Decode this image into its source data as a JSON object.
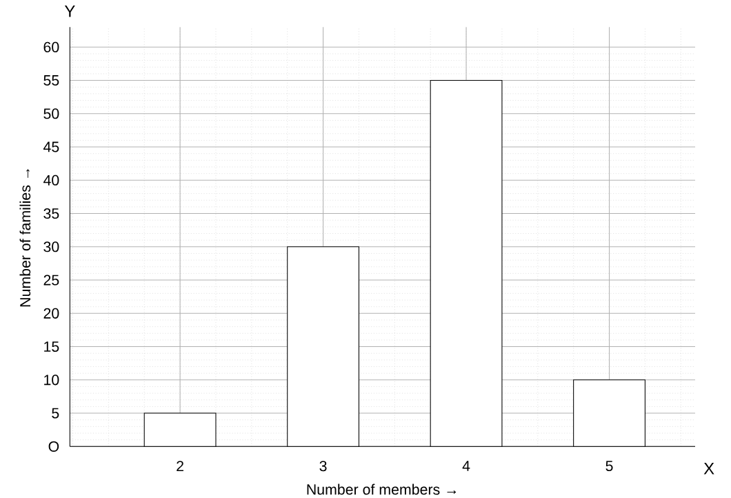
{
  "chart_data": {
    "type": "bar",
    "xlabel": "Number of members →",
    "ylabel": "Number of families →",
    "categories": [
      "2",
      "3",
      "4",
      "5"
    ],
    "values": [
      5,
      30,
      55,
      10
    ],
    "color": "#ffffff",
    "ylim": [
      0,
      63
    ],
    "yticks": [
      {
        "value": 0,
        "label": "O"
      },
      5,
      10,
      15,
      20,
      25,
      30,
      35,
      40,
      45,
      50,
      55,
      60
    ],
    "grid": true,
    "annotations": [
      "X",
      "Y"
    ]
  }
}
